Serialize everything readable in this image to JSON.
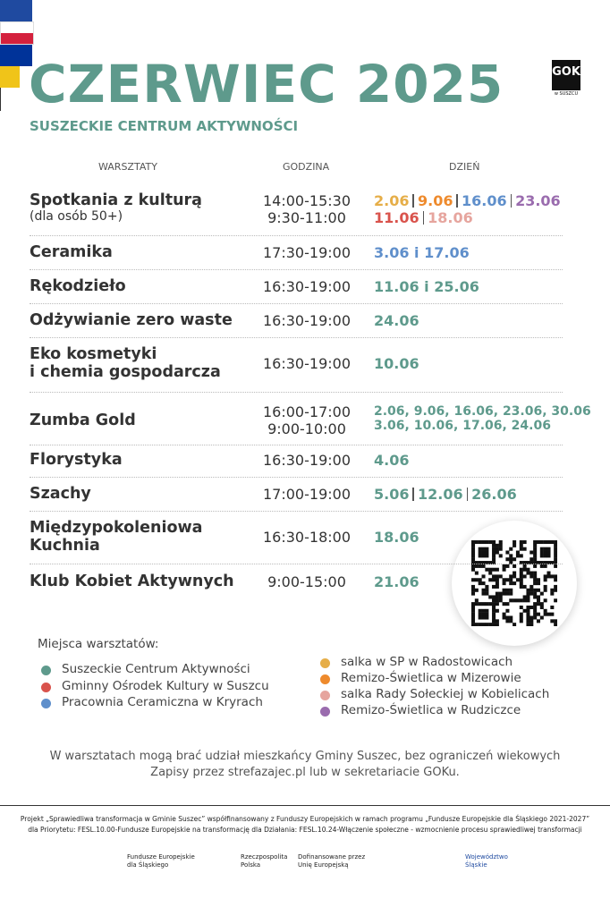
{
  "header": {
    "title": "CZERWIEC 2025",
    "subtitle": "SUSZECKIE CENTRUM AKTYWNOŚCI",
    "logo": "GOK",
    "logo_sub": "w SUSZCU"
  },
  "table": {
    "columns": [
      "WARSZTATY",
      "GODZINA",
      "DZIEŃ"
    ],
    "rows": [
      {
        "name": [
          "Spotkania z kulturą"
        ],
        "note": "(dla osób 50+)",
        "times": [
          "14:00-15:30",
          "9:30-11:00"
        ],
        "dates": [
          [
            {
              "text": "2.06",
              "color": "#e6ae48"
            },
            {
              "text": "9.06",
              "color": "#ee8a2c"
            },
            {
              "text": "16.06",
              "color": "#5f8fcb"
            },
            {
              "text": "23.06",
              "color": "#9a6cae"
            }
          ],
          [
            {
              "text": "11.06",
              "color": "#d9534c"
            },
            {
              "text": "18.06",
              "color": "#e6a59e"
            }
          ]
        ]
      },
      {
        "name": [
          "Ceramika"
        ],
        "times": [
          "17:30-19:00"
        ],
        "dates": [
          [
            {
              "text": "3.06 i 17.06",
              "color": "#5f8fcb"
            }
          ]
        ]
      },
      {
        "name": [
          "Rękodzieło"
        ],
        "times": [
          "16:30-19:00"
        ],
        "dates": [
          [
            {
              "text": "11.06 i 25.06",
              "color": "#5e9a8c"
            }
          ]
        ]
      },
      {
        "name": [
          "Odżywianie zero waste"
        ],
        "times": [
          "16:30-19:00"
        ],
        "dates": [
          [
            {
              "text": "24.06",
              "color": "#5e9a8c"
            }
          ]
        ]
      },
      {
        "name": [
          "Eko kosmetyki",
          "i chemia gospodarcza"
        ],
        "times": [
          "16:30-19:00"
        ],
        "dates": [
          [
            {
              "text": "10.06",
              "color": "#5e9a8c"
            }
          ]
        ]
      },
      {
        "name": [
          "Zumba Gold"
        ],
        "times": [
          "16:00-17:00",
          "9:00-10:00"
        ],
        "dates": [
          [
            {
              "text": "2.06, 9.06, 16.06, 23.06, 30.06",
              "color": "#5e9a8c"
            }
          ],
          [
            {
              "text": "3.06, 10.06, 17.06, 24.06",
              "color": "#5e9a8c"
            }
          ]
        ]
      },
      {
        "name": [
          "Florystyka"
        ],
        "times": [
          "16:30-19:00"
        ],
        "dates": [
          [
            {
              "text": "4.06",
              "color": "#5e9a8c"
            }
          ]
        ]
      },
      {
        "name": [
          "Szachy"
        ],
        "times": [
          "17:00-19:00"
        ],
        "dates": [
          [
            {
              "text": "5.06",
              "color": "#5e9a8c"
            },
            {
              "text": "12.06",
              "color": "#5e9a8c"
            },
            {
              "text": "26.06",
              "color": "#5e9a8c"
            }
          ]
        ]
      },
      {
        "name": [
          "Międzypokoleniowa",
          "Kuchnia"
        ],
        "times": [
          "16:30-18:00"
        ],
        "dates": [
          [
            {
              "text": "18.06",
              "color": "#5e9a8c"
            }
          ]
        ]
      },
      {
        "name": [
          "Klub Kobiet Aktywnych"
        ],
        "times": [
          "9:00-15:00"
        ],
        "dates": [
          [
            {
              "text": "21.06",
              "color": "#5e9a8c"
            }
          ]
        ]
      }
    ]
  },
  "legend": {
    "title": "Miejsca warsztatów:",
    "items": [
      {
        "label": "Suszeckie Centrum Aktywności",
        "color": "#5e9a8c"
      },
      {
        "label": "Gminny Ośrodek Kultury w Suszcu",
        "color": "#d9534c"
      },
      {
        "label": "Pracownia Ceramiczna w Kryrach",
        "color": "#5f8fcb"
      },
      {
        "label": "salka w SP w Radostowicach",
        "color": "#e6ae48"
      },
      {
        "label": "Remizo-Świetlica w Mizerowie",
        "color": "#ee8a2c"
      },
      {
        "label": "salka Rady Sołeckiej w Kobielicach",
        "color": "#e6a59e"
      },
      {
        "label": "Remizo-Świetlica w Rudziczce",
        "color": "#9a6cae"
      }
    ]
  },
  "info": [
    "W warsztatach mogą brać udział mieszkańcy Gminy Suszec, bez ograniczeń wiekowych",
    "Zapisy przez strefazajec.pl lub w sekretariacie GOKu."
  ],
  "footer": {
    "project": [
      "Projekt „Sprawiedliwa transformacja w Gminie Suszec” współfinansowany z Funduszy Europejskich w ramach programu „Fundusze Europejskie dla Śląskiego 2021-2027”",
      "dla Priorytetu: FESL.10.00-Fundusze Europejskie na transformację dla Działania: FESL.10.24-Włączenie społeczne - wzmocnienie procesu sprawiedliwej transformacji"
    ],
    "logos": [
      [
        "Fundusze Europejskie",
        "dla Śląskiego"
      ],
      [
        "Rzeczpospolita",
        "Polska"
      ],
      [
        "Dofinansowane przez",
        "Unię Europejską"
      ],
      [
        "Województwo",
        "Śląskie"
      ]
    ]
  }
}
